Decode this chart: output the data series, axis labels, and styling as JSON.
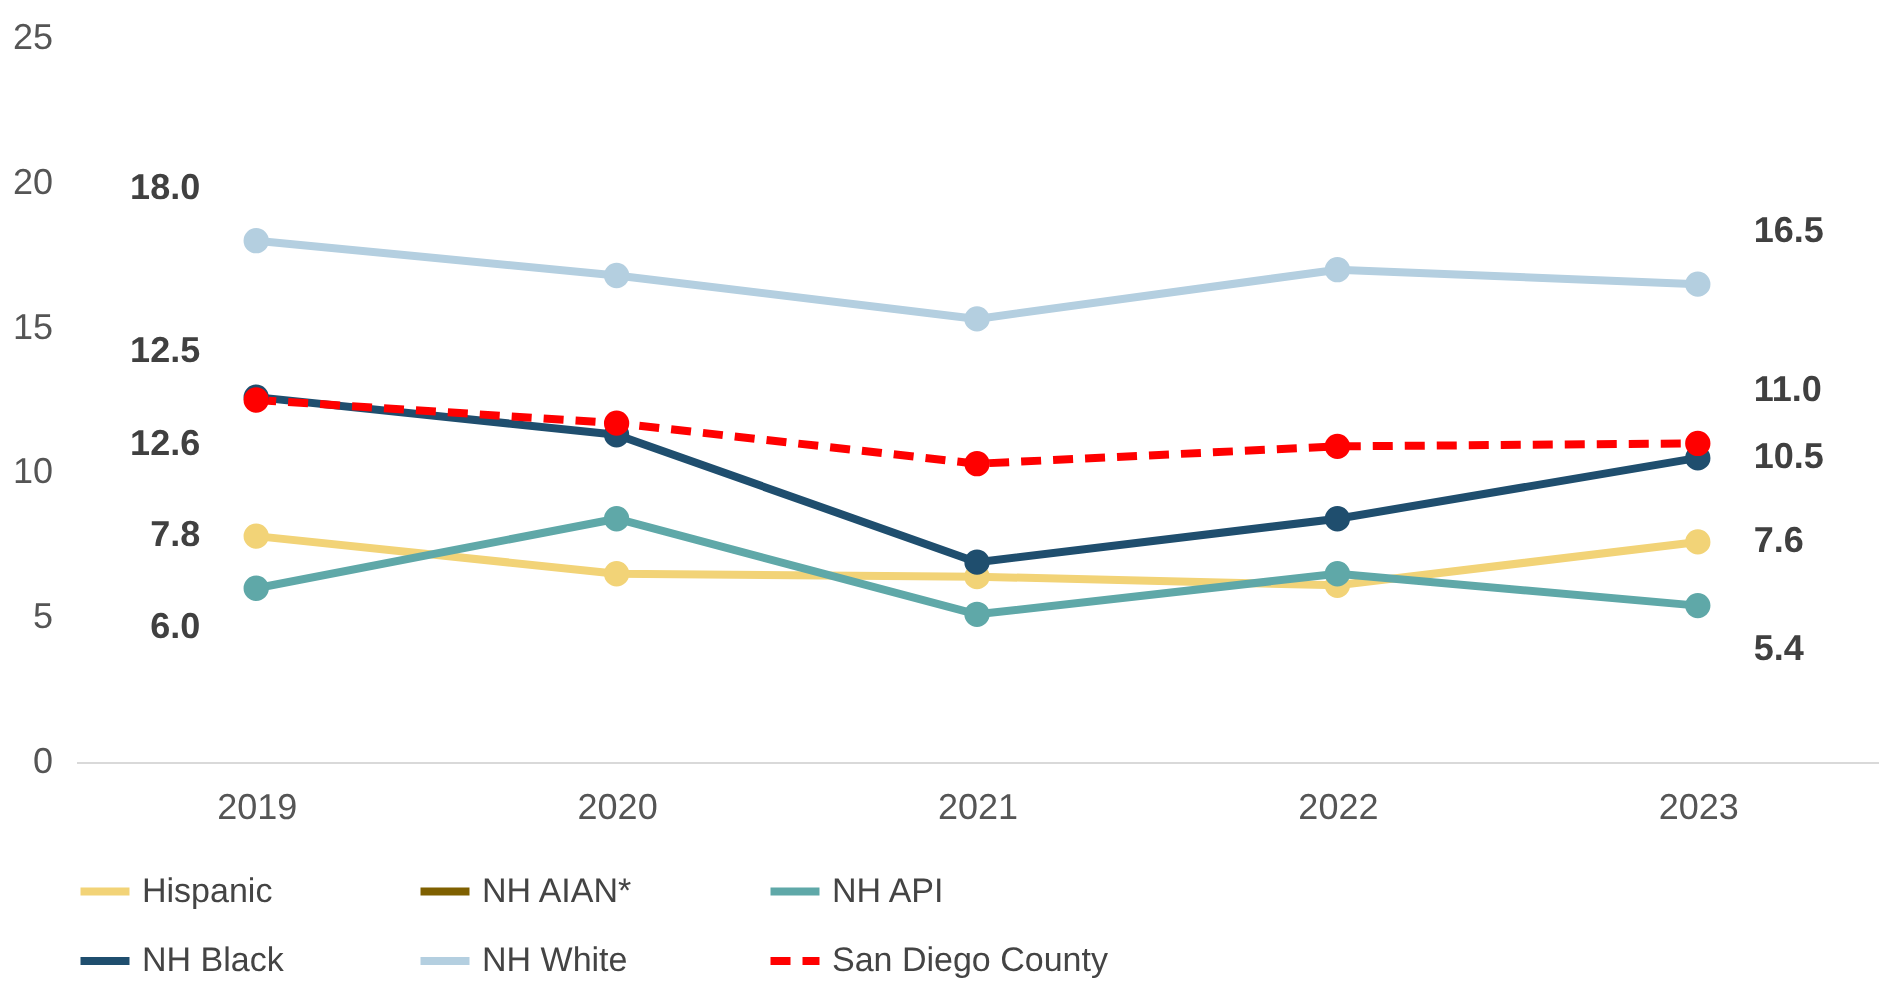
{
  "chart_data": {
    "type": "line",
    "categories": [
      "2019",
      "2020",
      "2021",
      "2022",
      "2023"
    ],
    "ylim": [
      0,
      25
    ],
    "yticks": [
      0,
      5,
      10,
      15,
      20,
      25
    ],
    "grid": false,
    "legend": "bottom",
    "marker": "circle",
    "series": [
      {
        "name": "Hispanic",
        "color": "#f2d377",
        "values": [
          7.8,
          6.5,
          6.4,
          6.1,
          7.6
        ],
        "value_labels": [
          "7.8",
          null,
          null,
          null,
          "7.6"
        ]
      },
      {
        "name": "NH AIAN*",
        "color": "#7f6000",
        "values": [
          null,
          null,
          null,
          null,
          null
        ]
      },
      {
        "name": "NH API",
        "color": "#5fa8a8",
        "values": [
          6.0,
          8.4,
          5.1,
          6.5,
          5.4
        ],
        "value_labels": [
          "6.0",
          null,
          null,
          null,
          "5.4"
        ]
      },
      {
        "name": "NH Black",
        "color": "#1f4e6e",
        "values": [
          12.6,
          11.3,
          6.9,
          8.4,
          10.5
        ],
        "value_labels": [
          "12.6",
          null,
          null,
          null,
          "10.5"
        ]
      },
      {
        "name": "NH White",
        "color": "#b4cfe0",
        "values": [
          18.0,
          16.8,
          15.3,
          17.0,
          16.5
        ],
        "value_labels": [
          "18.0",
          null,
          null,
          null,
          "16.5"
        ]
      },
      {
        "name": "San Diego County",
        "color": "#ff0000",
        "line_style": "dashed",
        "values": [
          12.5,
          11.7,
          10.3,
          10.9,
          11.0
        ],
        "value_labels": [
          "12.5",
          null,
          null,
          null,
          "11.0"
        ]
      }
    ]
  }
}
